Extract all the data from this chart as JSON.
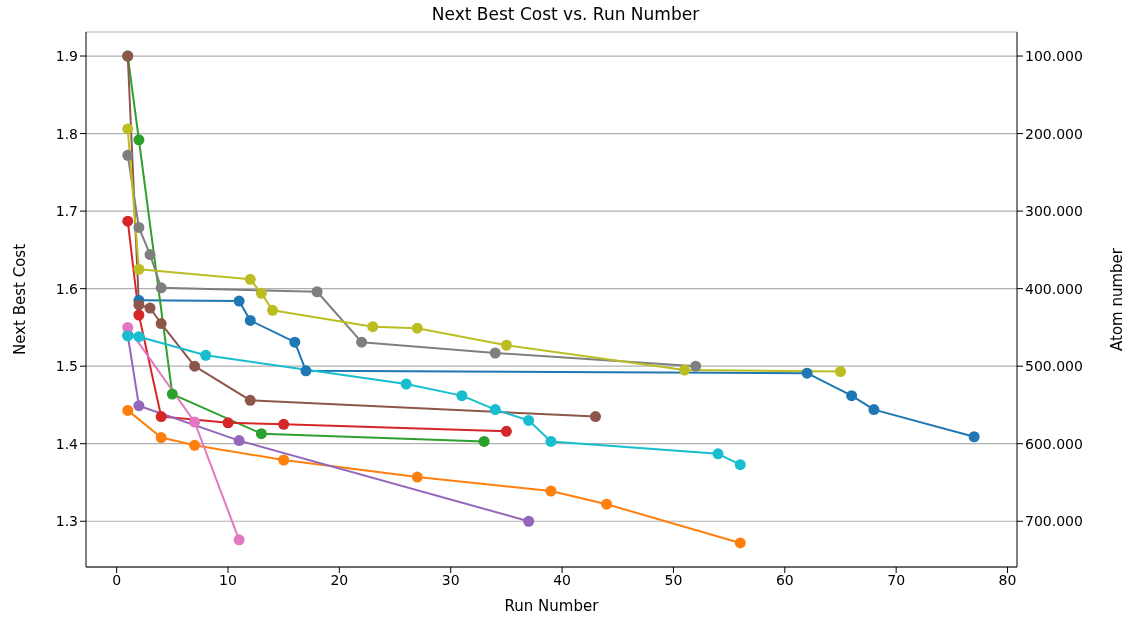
{
  "chart_data": {
    "type": "line",
    "title": "Next Best Cost vs. Run Number",
    "xlabel": "Run Number",
    "ylabel": "Next Best Cost",
    "y2label": "Atom number",
    "xlim": [
      -2.75,
      80.85
    ],
    "xticks": [
      0,
      10,
      20,
      30,
      40,
      50,
      60,
      70,
      80
    ],
    "ylim": [
      1.241,
      1.931
    ],
    "yticks": [
      1.3,
      1.4,
      1.5,
      1.6,
      1.7,
      1.8,
      1.9
    ],
    "y2lim": [
      759,
      69
    ],
    "y2ticks": [
      {
        "value": 100,
        "label": "100.000"
      },
      {
        "value": 200,
        "label": "200.000"
      },
      {
        "value": 300,
        "label": "300.000"
      },
      {
        "value": 400,
        "label": "400.000"
      },
      {
        "value": 500,
        "label": "500.000"
      },
      {
        "value": 600,
        "label": "600.000"
      },
      {
        "value": 700,
        "label": "700.000"
      }
    ],
    "grid": "y",
    "legend": false,
    "marker": "circle",
    "line_style": "solid",
    "series": [
      {
        "color": "#1f77b4",
        "x": [
          2,
          11,
          12,
          16,
          17,
          62,
          66,
          68,
          77
        ],
        "values": [
          1.585,
          1.584,
          1.559,
          1.531,
          1.494,
          1.491,
          1.462,
          1.444,
          1.409
        ]
      },
      {
        "color": "#ff7f0e",
        "x": [
          1,
          4,
          7,
          15,
          27,
          39,
          44,
          56
        ],
        "values": [
          1.443,
          1.408,
          1.398,
          1.379,
          1.357,
          1.339,
          1.322,
          1.272
        ]
      },
      {
        "color": "#2ca02c",
        "x": [
          1,
          2,
          5,
          13,
          33
        ],
        "values": [
          1.9,
          1.792,
          1.464,
          1.413,
          1.403
        ]
      },
      {
        "color": "#d62728",
        "x": [
          1,
          2,
          4,
          10,
          15,
          35
        ],
        "values": [
          1.687,
          1.566,
          1.435,
          1.427,
          1.425,
          1.416
        ]
      },
      {
        "color": "#9467bd",
        "x": [
          1,
          2,
          11,
          37
        ],
        "values": [
          1.54,
          1.449,
          1.404,
          1.3
        ]
      },
      {
        "color": "#8c564b",
        "x": [
          1,
          2,
          3,
          4,
          7,
          12,
          43
        ],
        "values": [
          1.9,
          1.579,
          1.575,
          1.555,
          1.5,
          1.456,
          1.435
        ]
      },
      {
        "color": "#e377c2",
        "x": [
          1,
          7,
          11
        ],
        "values": [
          1.55,
          1.428,
          1.276
        ]
      },
      {
        "color": "#7f7f7f",
        "x": [
          1,
          2,
          3,
          4,
          18,
          22,
          34,
          52
        ],
        "values": [
          1.772,
          1.679,
          1.644,
          1.601,
          1.596,
          1.531,
          1.517,
          1.5
        ]
      },
      {
        "color": "#bcbd22",
        "x": [
          1,
          2,
          12,
          13,
          14,
          23,
          27,
          35,
          51,
          65
        ],
        "values": [
          1.806,
          1.625,
          1.612,
          1.594,
          1.572,
          1.551,
          1.549,
          1.527,
          1.495,
          1.493
        ]
      },
      {
        "color": "#17becf",
        "x": [
          1,
          2,
          8,
          26,
          31,
          34,
          37,
          39,
          54,
          56
        ],
        "values": [
          1.539,
          1.538,
          1.514,
          1.477,
          1.462,
          1.444,
          1.43,
          1.403,
          1.387,
          1.373
        ]
      }
    ]
  }
}
